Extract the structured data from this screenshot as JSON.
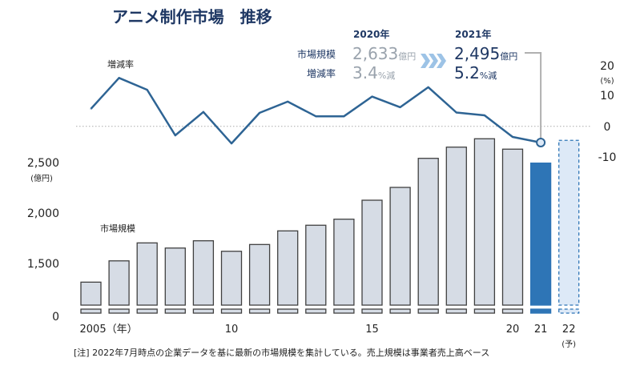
{
  "title": "アニメ制作市場　推移",
  "summary": {
    "row_labels": [
      "市場規模",
      "増減率"
    ],
    "y2020": {
      "year": "2020年",
      "size": "2,633",
      "size_unit": "億円",
      "rate": "3.4",
      "rate_unit": "%減"
    },
    "y2021": {
      "year": "2021年",
      "size": "2,495",
      "size_unit": "億円",
      "rate": "5.2",
      "rate_unit": "%減"
    }
  },
  "chart_data": [
    {
      "type": "bar",
      "series_label": "市場規模",
      "unit_label": "(億円)",
      "categories": [
        "2005",
        "2006",
        "2007",
        "2008",
        "2009",
        "2010",
        "2011",
        "2012",
        "2013",
        "2014",
        "2015",
        "2016",
        "2017",
        "2018",
        "2019",
        "2020",
        "2021",
        "2022"
      ],
      "values": [
        1315,
        1526,
        1704,
        1653,
        1725,
        1621,
        1688,
        1823,
        1879,
        1939,
        2127,
        2254,
        2542,
        2653,
        2736,
        2633,
        2495,
        2720
      ],
      "highlight": "2021",
      "forecast": "2022",
      "y_ticks": [
        "0",
        "1,500",
        "2,000",
        "2,500"
      ],
      "axis_break": true,
      "x_tick_labels": [
        {
          "year": "2005",
          "text": "2005（年）"
        },
        {
          "year": "2010",
          "text": "10"
        },
        {
          "year": "2015",
          "text": "15"
        },
        {
          "year": "2020",
          "text": "20"
        },
        {
          "year": "2021",
          "text": "21"
        },
        {
          "year": "2022",
          "text": "22"
        }
      ],
      "forecast_label": "(予)",
      "colors": {
        "bar": "#d6dce5",
        "bar_border": "#404040",
        "highlight": "#2e75b6",
        "forecast": "#dde9f7"
      }
    },
    {
      "type": "line",
      "series_label": "増減率",
      "unit_label": "(%)",
      "x": [
        "2005",
        "2006",
        "2007",
        "2008",
        "2009",
        "2010",
        "2011",
        "2012",
        "2013",
        "2014",
        "2015",
        "2016",
        "2017",
        "2018",
        "2019",
        "2020",
        "2021"
      ],
      "values": [
        5.6,
        15.5,
        11.7,
        -2.9,
        4.6,
        -5.5,
        4.3,
        7.9,
        3.2,
        3.2,
        9.5,
        6.1,
        12.5,
        4.4,
        3.5,
        -3.4,
        -5.2
      ],
      "y_ticks": [
        "-10",
        "0",
        "10",
        "20"
      ],
      "zero_line": "dotted",
      "color": "#2e6494"
    }
  ],
  "footnote": "[注] 2022年7月時点の企業データを基に最新の市場規模を集計している。売上規模は事業者売上高ベース"
}
